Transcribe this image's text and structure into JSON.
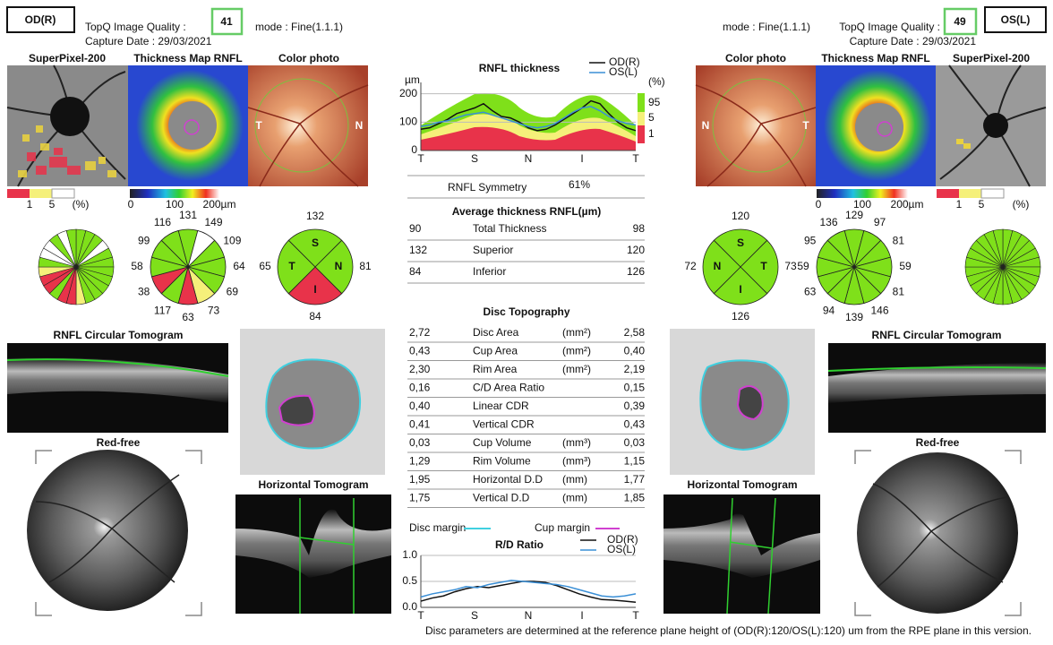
{
  "header": {
    "left": {
      "eye": "OD(R)",
      "quality_label": "TopQ Image Quality :",
      "quality": "41",
      "mode": "mode : Fine(1.1.1)",
      "capture_date": "Capture Date : 29/03/2021"
    },
    "right": {
      "eye": "OS(L)",
      "mode": "mode : Fine(1.1.1)",
      "quality_label": "TopQ Image Quality :",
      "quality": "49",
      "capture_date": "Capture Date : 29/03/2021"
    }
  },
  "left_eye": {
    "superpixel_title": "SuperPixel-200",
    "thickness_map_title": "Thickness Map RNFL",
    "color_photo_title": "Color photo",
    "photo_letters": [
      "T",
      "N"
    ],
    "percent_scale": [
      "1",
      "5",
      "(%)"
    ],
    "thickness_scale": [
      "0",
      "100",
      "200µm"
    ],
    "sector_colors": [
      "#7fe01a",
      "#7fe01a",
      "#7fe01a",
      "#ffffff",
      "#7fe01a",
      "#7fe01a",
      "#7fe01a",
      "#7fe01a",
      "#7fe01a",
      "#7fe01a",
      "#7fe01a",
      "#f5f07a",
      "#e8334a",
      "#e8334a",
      "#7fe01a",
      "#e8334a",
      "#e8334a",
      "#f5f07a",
      "#7fe01a",
      "#ffffff",
      "#ffffff",
      "#7fe01a",
      "#ffffff",
      "#7fe01a"
    ],
    "clock_hours": [
      "131",
      "149",
      "109",
      "64",
      "69",
      "73",
      "63",
      "117",
      "38",
      "58",
      "99",
      "116"
    ],
    "clock_colors": [
      "#7fe01a",
      "#ffffff",
      "#7fe01a",
      "#7fe01a",
      "#7fe01a",
      "#f5f07a",
      "#e8334a",
      "#7fe01a",
      "#e8334a",
      "#7fe01a",
      "#7fe01a",
      "#7fe01a"
    ],
    "quadrants": [
      {
        "label": "S",
        "value": "132",
        "color": "#7fe01a"
      },
      {
        "label": "N",
        "value": "81",
        "color": "#7fe01a"
      },
      {
        "label": "I",
        "value": "84",
        "color": "#e8334a"
      },
      {
        "label": "T",
        "value": "65",
        "color": "#7fe01a"
      }
    ],
    "circular_tomogram_title": "RNFL Circular Tomogram",
    "red_free_title": "Red-free",
    "horizontal_tomogram_title": "Horizontal Tomogram"
  },
  "right_eye": {
    "superpixel_title": "SuperPixel-200",
    "thickness_map_title": "Thickness Map RNFL",
    "color_photo_title": "Color photo",
    "photo_letters": [
      "N",
      "T"
    ],
    "percent_scale": [
      "1",
      "5",
      "(%)"
    ],
    "thickness_scale": [
      "0",
      "100",
      "200µm"
    ],
    "sector_colors": [
      "#7fe01a",
      "#7fe01a",
      "#7fe01a",
      "#7fe01a",
      "#7fe01a",
      "#7fe01a",
      "#7fe01a",
      "#7fe01a",
      "#7fe01a",
      "#7fe01a",
      "#7fe01a",
      "#7fe01a",
      "#7fe01a",
      "#7fe01a",
      "#7fe01a",
      "#7fe01a",
      "#7fe01a",
      "#7fe01a",
      "#7fe01a",
      "#7fe01a",
      "#7fe01a",
      "#7fe01a",
      "#7fe01a",
      "#7fe01a"
    ],
    "clock_hours": [
      "129",
      "97",
      "81",
      "59",
      "81",
      "146",
      "139",
      "94",
      "63",
      "59",
      "95",
      "136"
    ],
    "clock_colors": [
      "#7fe01a",
      "#7fe01a",
      "#7fe01a",
      "#7fe01a",
      "#7fe01a",
      "#7fe01a",
      "#7fe01a",
      "#7fe01a",
      "#7fe01a",
      "#7fe01a",
      "#7fe01a",
      "#7fe01a"
    ],
    "quadrants": [
      {
        "label": "S",
        "value": "120",
        "color": "#7fe01a"
      },
      {
        "label": "T",
        "value": "73",
        "color": "#7fe01a"
      },
      {
        "label": "I",
        "value": "126",
        "color": "#7fe01a"
      },
      {
        "label": "N",
        "value": "72",
        "color": "#7fe01a"
      }
    ],
    "circular_tomogram_title": "RNFL Circular Tomogram",
    "red_free_title": "Red-free",
    "horizontal_tomogram_title": "Horizontal Tomogram"
  },
  "center": {
    "rnfl_chart": {
      "title": "RNFL thickness",
      "y_unit": "µm",
      "ylim": [
        0,
        240
      ],
      "yticks": [
        0,
        100,
        200
      ],
      "x_labels": [
        "T",
        "S",
        "N",
        "I",
        "T"
      ],
      "percentile_labels": [
        "(%)",
        "95",
        "5",
        "1"
      ],
      "series": [
        {
          "name": "OD(R)",
          "color": "#111111",
          "values": [
            75,
            80,
            95,
            110,
            130,
            140,
            150,
            165,
            140,
            120,
            115,
            100,
            80,
            70,
            75,
            90,
            110,
            130,
            150,
            175,
            165,
            130,
            100,
            80,
            70
          ]
        },
        {
          "name": "OS(L)",
          "color": "#3a8fd6",
          "values": [
            85,
            90,
            100,
            105,
            115,
            125,
            130,
            135,
            125,
            115,
            105,
            95,
            85,
            80,
            85,
            95,
            115,
            135,
            150,
            155,
            140,
            120,
            105,
            95,
            90
          ]
        }
      ]
    },
    "symmetry": {
      "label": "RNFL Symmetry",
      "value": "61%"
    },
    "average_thickness": {
      "title": "Average thickness RNFL(µm)",
      "rows": [
        [
          "90",
          "Total Thickness",
          "98"
        ],
        [
          "132",
          "Superior",
          "120"
        ],
        [
          "84",
          "Inferior",
          "126"
        ]
      ]
    },
    "disc_topography": {
      "title": "Disc Topography",
      "rows": [
        {
          "left": "2,72",
          "name": "Disc Area",
          "unit": "(mm²)",
          "right": "2,58"
        },
        {
          "left": "0,43",
          "name": "Cup Area",
          "unit": "(mm²)",
          "right": "0,40"
        },
        {
          "left": "2,30",
          "name": "Rim Area",
          "unit": "(mm²)",
          "right": "2,19"
        },
        {
          "left": "0,16",
          "name": "C/D Area Ratio",
          "right": "0,15"
        },
        {
          "left": "0,40",
          "name": "Linear CDR",
          "right": "0,39"
        },
        {
          "left": "0,41",
          "name": "Vertical CDR",
          "right": "0,43"
        },
        {
          "left": "0,03",
          "name": "Cup Volume",
          "unit": "(mm³)",
          "right": "0,03"
        },
        {
          "left": "1,29",
          "name": "Rim Volume",
          "unit": "(mm³)",
          "right": "1,15"
        },
        {
          "left": "1,95",
          "name": "Horizontal D.D",
          "unit": "(mm)",
          "right": "1,77"
        },
        {
          "left": "1,75",
          "name": "Vertical D.D",
          "unit": "(mm)",
          "right": "1,85"
        }
      ]
    },
    "margin_legend": {
      "disc": "Disc margin",
      "cup": "Cup margin"
    },
    "rd_chart": {
      "title": "R/D Ratio",
      "ylim": [
        0,
        1
      ],
      "yticks": [
        {
          "value": 0,
          "label": "0.0"
        },
        {
          "value": 0.5,
          "label": "0.5"
        },
        {
          "value": 1,
          "label": "1.0"
        }
      ],
      "x_labels": [
        "T",
        "S",
        "N",
        "I",
        "T"
      ],
      "series": [
        {
          "name": "OD(R)",
          "color": "#111111",
          "values": [
            0.12,
            0.18,
            0.22,
            0.3,
            0.36,
            0.4,
            0.38,
            0.42,
            0.46,
            0.5,
            0.5,
            0.48,
            0.42,
            0.34,
            0.26,
            0.2,
            0.15,
            0.14,
            0.12,
            0.1
          ]
        },
        {
          "name": "OS(L)",
          "color": "#3a8fd6",
          "values": [
            0.2,
            0.26,
            0.3,
            0.34,
            0.4,
            0.38,
            0.44,
            0.48,
            0.52,
            0.5,
            0.48,
            0.46,
            0.44,
            0.4,
            0.34,
            0.28,
            0.22,
            0.2,
            0.22,
            0.26
          ]
        }
      ]
    },
    "footnote": "Disc parameters are determined at the reference plane height of  (OD(R):120/OS(L):120)  um from the RPE plane in this version."
  }
}
